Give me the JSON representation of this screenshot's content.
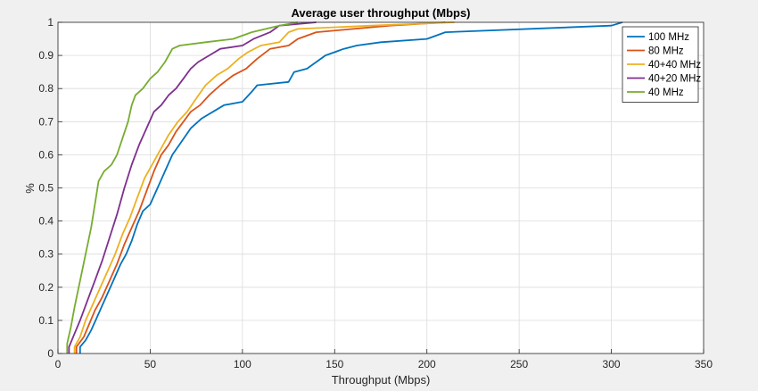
{
  "chart_data": {
    "type": "line",
    "title": "Average user throughput (Mbps)",
    "xlabel": "Throughput (Mbps)",
    "ylabel": "%",
    "xlim": [
      0,
      350
    ],
    "ylim": [
      0,
      1
    ],
    "xticks": [
      0,
      50,
      100,
      150,
      200,
      250,
      300,
      350
    ],
    "yticks": [
      0,
      0.1,
      0.2,
      0.3,
      0.4,
      0.5,
      0.6,
      0.7,
      0.8,
      0.9,
      1
    ],
    "grid": true,
    "legend_position": "top-right",
    "series": [
      {
        "name": "100 MHz",
        "color": "#0072bd",
        "points": [
          [
            12,
            0
          ],
          [
            12,
            0.02
          ],
          [
            15,
            0.04
          ],
          [
            18,
            0.07
          ],
          [
            22,
            0.12
          ],
          [
            26,
            0.17
          ],
          [
            30,
            0.22
          ],
          [
            34,
            0.27
          ],
          [
            37,
            0.3
          ],
          [
            40,
            0.34
          ],
          [
            43,
            0.39
          ],
          [
            46,
            0.43
          ],
          [
            50,
            0.45
          ],
          [
            54,
            0.5
          ],
          [
            58,
            0.55
          ],
          [
            62,
            0.6
          ],
          [
            67,
            0.64
          ],
          [
            72,
            0.68
          ],
          [
            78,
            0.71
          ],
          [
            84,
            0.73
          ],
          [
            90,
            0.75
          ],
          [
            100,
            0.76
          ],
          [
            105,
            0.79
          ],
          [
            108,
            0.81
          ],
          [
            125,
            0.82
          ],
          [
            128,
            0.85
          ],
          [
            135,
            0.86
          ],
          [
            140,
            0.88
          ],
          [
            145,
            0.9
          ],
          [
            155,
            0.92
          ],
          [
            162,
            0.93
          ],
          [
            175,
            0.94
          ],
          [
            200,
            0.95
          ],
          [
            210,
            0.97
          ],
          [
            300,
            0.99
          ],
          [
            306,
            1
          ]
        ]
      },
      {
        "name": "80 MHz",
        "color": "#d95319",
        "points": [
          [
            10,
            0
          ],
          [
            10,
            0.02
          ],
          [
            14,
            0.05
          ],
          [
            17,
            0.09
          ],
          [
            20,
            0.13
          ],
          [
            24,
            0.17
          ],
          [
            28,
            0.22
          ],
          [
            32,
            0.27
          ],
          [
            36,
            0.33
          ],
          [
            40,
            0.38
          ],
          [
            44,
            0.43
          ],
          [
            48,
            0.49
          ],
          [
            52,
            0.55
          ],
          [
            56,
            0.6
          ],
          [
            60,
            0.63
          ],
          [
            64,
            0.67
          ],
          [
            68,
            0.7
          ],
          [
            72,
            0.73
          ],
          [
            77,
            0.75
          ],
          [
            82,
            0.78
          ],
          [
            88,
            0.81
          ],
          [
            95,
            0.84
          ],
          [
            102,
            0.86
          ],
          [
            108,
            0.89
          ],
          [
            115,
            0.92
          ],
          [
            125,
            0.93
          ],
          [
            130,
            0.95
          ],
          [
            140,
            0.97
          ],
          [
            160,
            0.98
          ],
          [
            180,
            0.99
          ],
          [
            210,
            1
          ]
        ]
      },
      {
        "name": "40+40 MHz",
        "color": "#edb120",
        "points": [
          [
            9,
            0
          ],
          [
            9,
            0.02
          ],
          [
            12,
            0.05
          ],
          [
            15,
            0.1
          ],
          [
            19,
            0.15
          ],
          [
            23,
            0.2
          ],
          [
            27,
            0.25
          ],
          [
            31,
            0.3
          ],
          [
            35,
            0.36
          ],
          [
            39,
            0.41
          ],
          [
            43,
            0.47
          ],
          [
            47,
            0.53
          ],
          [
            52,
            0.58
          ],
          [
            56,
            0.62
          ],
          [
            60,
            0.66
          ],
          [
            65,
            0.7
          ],
          [
            70,
            0.73
          ],
          [
            75,
            0.77
          ],
          [
            80,
            0.81
          ],
          [
            86,
            0.84
          ],
          [
            92,
            0.86
          ],
          [
            98,
            0.89
          ],
          [
            103,
            0.91
          ],
          [
            110,
            0.93
          ],
          [
            120,
            0.94
          ],
          [
            125,
            0.97
          ],
          [
            130,
            0.98
          ],
          [
            170,
            0.99
          ],
          [
            215,
            1
          ]
        ]
      },
      {
        "name": "40+20 MHz",
        "color": "#7e2f8e",
        "points": [
          [
            6,
            0
          ],
          [
            6,
            0.02
          ],
          [
            9,
            0.06
          ],
          [
            12,
            0.1
          ],
          [
            16,
            0.16
          ],
          [
            20,
            0.22
          ],
          [
            24,
            0.28
          ],
          [
            28,
            0.35
          ],
          [
            32,
            0.42
          ],
          [
            36,
            0.5
          ],
          [
            40,
            0.57
          ],
          [
            44,
            0.63
          ],
          [
            48,
            0.68
          ],
          [
            52,
            0.73
          ],
          [
            56,
            0.75
          ],
          [
            60,
            0.78
          ],
          [
            64,
            0.8
          ],
          [
            68,
            0.83
          ],
          [
            72,
            0.86
          ],
          [
            76,
            0.88
          ],
          [
            82,
            0.9
          ],
          [
            88,
            0.92
          ],
          [
            100,
            0.93
          ],
          [
            106,
            0.95
          ],
          [
            115,
            0.97
          ],
          [
            120,
            0.99
          ],
          [
            140,
            1
          ]
        ]
      },
      {
        "name": "40 MHz",
        "color": "#77ac30",
        "points": [
          [
            5,
            0
          ],
          [
            5,
            0.03
          ],
          [
            7,
            0.08
          ],
          [
            9,
            0.14
          ],
          [
            12,
            0.22
          ],
          [
            15,
            0.3
          ],
          [
            18,
            0.38
          ],
          [
            20,
            0.45
          ],
          [
            22,
            0.52
          ],
          [
            25,
            0.55
          ],
          [
            29,
            0.57
          ],
          [
            32,
            0.6
          ],
          [
            35,
            0.65
          ],
          [
            38,
            0.7
          ],
          [
            40,
            0.75
          ],
          [
            42,
            0.78
          ],
          [
            46,
            0.8
          ],
          [
            50,
            0.83
          ],
          [
            54,
            0.85
          ],
          [
            58,
            0.88
          ],
          [
            62,
            0.92
          ],
          [
            66,
            0.93
          ],
          [
            80,
            0.94
          ],
          [
            95,
            0.95
          ],
          [
            105,
            0.97
          ],
          [
            120,
            0.99
          ],
          [
            130,
            1
          ]
        ]
      }
    ]
  }
}
